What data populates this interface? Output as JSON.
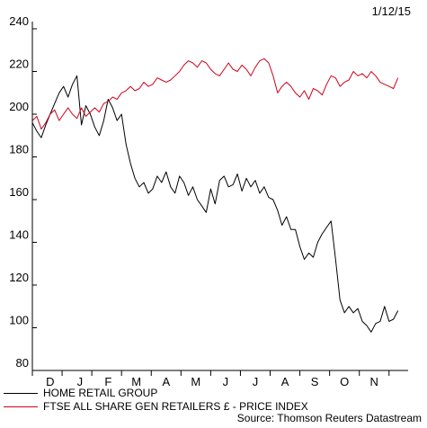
{
  "date_label": "1/12/15",
  "source": "Source: Thomson Reuters Datastream",
  "chart_data": {
    "type": "line",
    "ylim": [
      80,
      240
    ],
    "yticks": [
      80,
      100,
      120,
      140,
      160,
      180,
      200,
      220,
      240
    ],
    "xlim": [
      0,
      12.4
    ],
    "xticks": [
      {
        "label": "D",
        "pos": 0.6
      },
      {
        "label": "J",
        "pos": 1.6
      },
      {
        "label": "F",
        "pos": 2.55
      },
      {
        "label": "M",
        "pos": 3.5
      },
      {
        "label": "A",
        "pos": 4.5
      },
      {
        "label": "M",
        "pos": 5.5
      },
      {
        "label": "J",
        "pos": 6.5
      },
      {
        "label": "J",
        "pos": 7.5
      },
      {
        "label": "A",
        "pos": 8.5
      },
      {
        "label": "S",
        "pos": 9.5
      },
      {
        "label": "O",
        "pos": 10.5
      },
      {
        "label": "N",
        "pos": 11.5
      }
    ],
    "grid": false,
    "series": [
      {
        "name": "HOME RETAIL GROUP",
        "color": "#000000",
        "x": [
          0,
          0.15,
          0.3,
          0.45,
          0.6,
          0.75,
          0.9,
          1.05,
          1.2,
          1.35,
          1.5,
          1.65,
          1.8,
          1.95,
          2.1,
          2.25,
          2.4,
          2.55,
          2.7,
          2.85,
          3.0,
          3.15,
          3.3,
          3.45,
          3.6,
          3.75,
          3.9,
          4.05,
          4.2,
          4.35,
          4.5,
          4.65,
          4.8,
          4.95,
          5.1,
          5.25,
          5.4,
          5.55,
          5.7,
          5.85,
          6.0,
          6.15,
          6.3,
          6.45,
          6.6,
          6.75,
          6.9,
          7.05,
          7.2,
          7.35,
          7.5,
          7.65,
          7.8,
          7.95,
          8.1,
          8.25,
          8.4,
          8.55,
          8.7,
          8.85,
          9.0,
          9.15,
          9.3,
          9.45,
          9.6,
          9.75,
          9.9,
          10.05,
          10.2,
          10.35,
          10.5,
          10.65,
          10.8,
          10.95,
          11.1,
          11.25,
          11.4,
          11.55,
          11.7,
          11.85,
          12.0,
          12.15,
          12.3
        ],
        "values": [
          196,
          192,
          189,
          195,
          200,
          205,
          210,
          213,
          208,
          214,
          218,
          195,
          204,
          200,
          194,
          190,
          197,
          207,
          203,
          197,
          200,
          186,
          177,
          170,
          166,
          168,
          163,
          165,
          171,
          168,
          173,
          166,
          163,
          171,
          168,
          162,
          166,
          160,
          157,
          154,
          165,
          158,
          169,
          171,
          166,
          167,
          172,
          164,
          170,
          166,
          169,
          163,
          166,
          161,
          160,
          155,
          148,
          152,
          146,
          146,
          138,
          132,
          135,
          133,
          140,
          144,
          147,
          150,
          132,
          113,
          107,
          110,
          107,
          109,
          103,
          101,
          98,
          102,
          103,
          110,
          103,
          104,
          108
        ]
      },
      {
        "name": "FTSE ALL SHARE GEN RETAILERS £ - PRICE INDEX",
        "color": "#d0021b",
        "x": [
          0,
          0.15,
          0.3,
          0.45,
          0.6,
          0.75,
          0.9,
          1.05,
          1.2,
          1.35,
          1.5,
          1.65,
          1.8,
          1.95,
          2.1,
          2.25,
          2.4,
          2.55,
          2.7,
          2.85,
          3.0,
          3.15,
          3.3,
          3.45,
          3.6,
          3.75,
          3.9,
          4.05,
          4.2,
          4.35,
          4.5,
          4.65,
          4.8,
          4.95,
          5.1,
          5.25,
          5.4,
          5.55,
          5.7,
          5.85,
          6.0,
          6.15,
          6.3,
          6.45,
          6.6,
          6.75,
          6.9,
          7.05,
          7.2,
          7.35,
          7.5,
          7.65,
          7.8,
          7.95,
          8.1,
          8.25,
          8.4,
          8.55,
          8.7,
          8.85,
          9.0,
          9.15,
          9.3,
          9.45,
          9.6,
          9.75,
          9.9,
          10.05,
          10.2,
          10.35,
          10.5,
          10.65,
          10.8,
          10.95,
          11.1,
          11.25,
          11.4,
          11.55,
          11.7,
          11.85,
          12.0,
          12.15,
          12.3
        ],
        "values": [
          197,
          199,
          193,
          196,
          200,
          202,
          197,
          200,
          203,
          200,
          198,
          203,
          199,
          201,
          203,
          201,
          205,
          206,
          208,
          207,
          210,
          211,
          213,
          211,
          212,
          215,
          213,
          214,
          217,
          216,
          215,
          216,
          218,
          220,
          223,
          225,
          224,
          222,
          225,
          224,
          221,
          219,
          218,
          221,
          224,
          221,
          220,
          223,
          221,
          218,
          222,
          225,
          226,
          224,
          218,
          210,
          213,
          215,
          213,
          210,
          208,
          211,
          207,
          212,
          211,
          209,
          214,
          218,
          217,
          213,
          215,
          216,
          220,
          218,
          219,
          217,
          220,
          218,
          215,
          214,
          213,
          212,
          217
        ]
      }
    ]
  }
}
